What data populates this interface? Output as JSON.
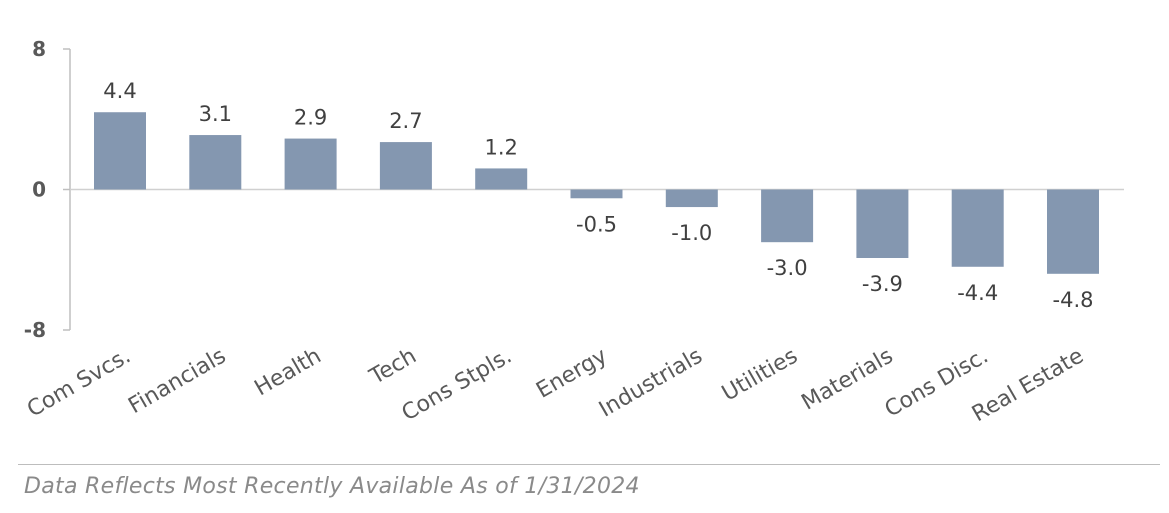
{
  "chart_data": {
    "type": "bar",
    "title": "",
    "xlabel": "",
    "ylabel": "",
    "ylim": [
      -8,
      8
    ],
    "y_ticks": [
      "8",
      "0",
      "-8"
    ],
    "grid": false,
    "bar_color": "#8497b0",
    "categories": [
      "Com Svcs.",
      "Financials",
      "Health",
      "Tech",
      "Cons Stpls.",
      "Energy",
      "Industrials",
      "Utilities",
      "Materials",
      "Cons Disc.",
      "Real Estate"
    ],
    "values": [
      4.4,
      3.1,
      2.9,
      2.7,
      1.2,
      -0.5,
      -1.0,
      -3.0,
      -3.9,
      -4.4,
      -4.8
    ],
    "value_labels": [
      "4.4",
      "3.1",
      "2.9",
      "2.7",
      "1.2",
      "-0.5",
      "-1.0",
      "-3.0",
      "-3.9",
      "-4.4",
      "-4.8"
    ]
  },
  "footnote": "Data Reflects Most Recently Available As of 1/31/2024"
}
